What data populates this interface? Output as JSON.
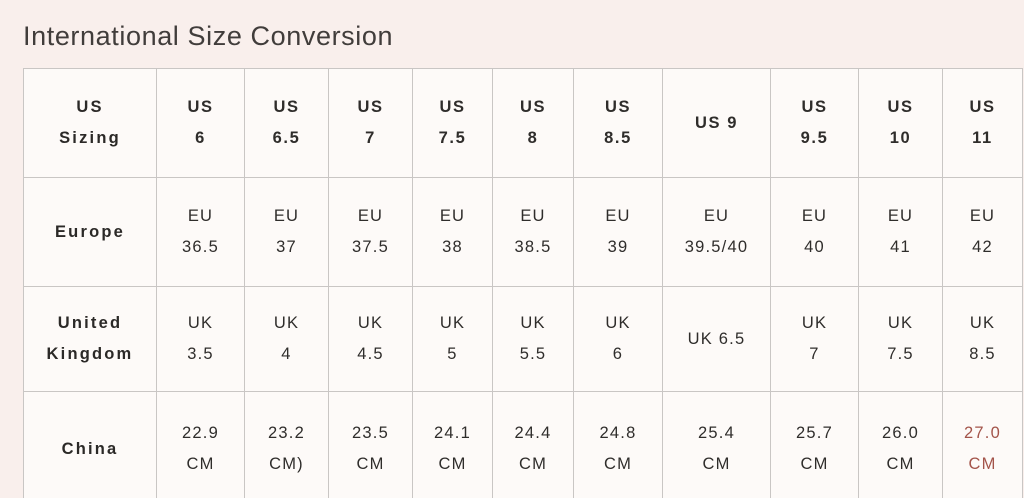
{
  "title": "International Size Conversion",
  "colors": {
    "page_bg": "#f9efec",
    "cell_bg": "#fdfaf8",
    "border": "#c9c6c4",
    "text": "#2f2d2b",
    "heading_text": "#413d3b",
    "highlight_text": "#a3544a"
  },
  "table": {
    "rows": [
      {
        "id": "us-sizing",
        "label_lines": [
          "US",
          "Sizing"
        ],
        "cells_bold": true,
        "cells": [
          [
            "US",
            "6"
          ],
          [
            "US",
            "6.5"
          ],
          [
            "US",
            "7"
          ],
          [
            "US",
            "7.5"
          ],
          [
            "US",
            "8"
          ],
          [
            "US",
            "8.5"
          ],
          [
            "US 9"
          ],
          [
            "US",
            "9.5"
          ],
          [
            "US",
            "10"
          ],
          [
            "US",
            "11"
          ]
        ]
      },
      {
        "id": "europe",
        "label_lines": [
          "Europe"
        ],
        "cells_bold": false,
        "cells": [
          [
            "EU",
            "36.5"
          ],
          [
            "EU",
            "37"
          ],
          [
            "EU",
            "37.5"
          ],
          [
            "EU",
            "38"
          ],
          [
            "EU",
            "38.5"
          ],
          [
            "EU",
            "39"
          ],
          [
            "EU",
            "39.5/40"
          ],
          [
            "EU",
            "40"
          ],
          [
            "EU",
            "41"
          ],
          [
            "EU",
            "42"
          ]
        ]
      },
      {
        "id": "united-kingdom",
        "label_lines": [
          "United",
          "Kingdom"
        ],
        "cells_bold": false,
        "cells": [
          [
            "UK",
            "3.5"
          ],
          [
            "UK",
            "4"
          ],
          [
            "UK",
            "4.5"
          ],
          [
            "UK",
            "5"
          ],
          [
            "UK",
            "5.5"
          ],
          [
            "UK",
            "6"
          ],
          [
            "UK 6.5"
          ],
          [
            "UK",
            "7"
          ],
          [
            "UK",
            "7.5"
          ],
          [
            "UK",
            "8.5"
          ]
        ]
      },
      {
        "id": "china",
        "label_lines": [
          "China"
        ],
        "cells_bold": false,
        "highlight_columns": [
          9
        ],
        "cells": [
          [
            "22.9",
            "CM"
          ],
          [
            "23.2",
            "CM)"
          ],
          [
            "23.5",
            "CM"
          ],
          [
            "24.1",
            "CM"
          ],
          [
            "24.4",
            "CM"
          ],
          [
            "24.8",
            "CM"
          ],
          [
            "25.4",
            "CM"
          ],
          [
            "25.7",
            "CM"
          ],
          [
            "26.0",
            "CM"
          ],
          [
            "27.0",
            "CM"
          ]
        ]
      }
    ]
  }
}
